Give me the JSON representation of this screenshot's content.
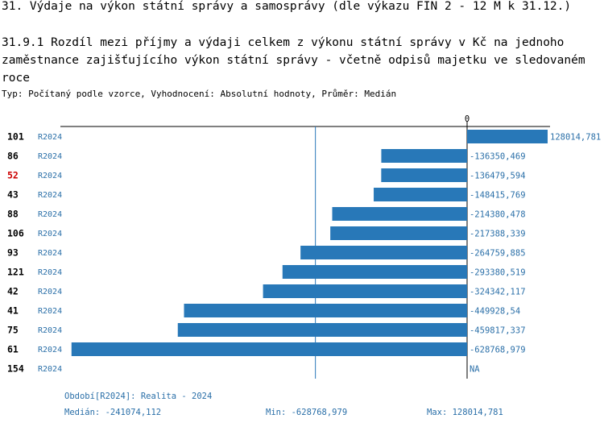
{
  "title": "31. Výdaje na výkon státní správy a samosprávy (dle výkazu FIN 2 - 12 M k 31.12.)",
  "subtitle": "31.9.1 Rozdíl mezi příjmy a výdaji celkem z výkonu státní správy v Kč na jednoho zaměstnance zajišťujícího výkon státní správy - včetně odpisů majetku ve sledovaném roce",
  "type_line": "Typ: Počítaný podle vzorce, Vyhodnocení: Absolutní hodnoty, Průměr: Medián",
  "colors": {
    "bar": "#2878b8",
    "label": "#2a6fa8",
    "highlight": "#cc0000",
    "axis": "#000000",
    "median_line": "#2878b8"
  },
  "chart_data": {
    "type": "bar",
    "orientation": "horizontal",
    "zero_label": "0",
    "period": "R2024",
    "xlim": [
      -640000,
      128014.781
    ],
    "median": -241074.112,
    "highlighted_category": "52",
    "categories": [
      "101",
      "86",
      "52",
      "43",
      "88",
      "106",
      "93",
      "121",
      "42",
      "41",
      "75",
      "61",
      "154"
    ],
    "values": [
      128014.781,
      -136350.469,
      -136479.594,
      -148415.769,
      -214380.478,
      -217388.339,
      -264759.885,
      -293380.519,
      -324342.117,
      -449928.54,
      -459817.337,
      -628768.979,
      null
    ],
    "value_labels": [
      "128014,781",
      "-136350,469",
      "-136479,594",
      "-148415,769",
      "-214380,478",
      "-217388,339",
      "-264759,885",
      "-293380,519",
      "-324342,117",
      "-449928,54",
      "-459817,337",
      "-628768,979",
      "NA"
    ]
  },
  "footer": {
    "period_label": "Období[R2024]: Realita - 2024",
    "median_label": "Medián: -241074,112",
    "min_label": "Min: -628768,979",
    "max_label": "Max: 128014,781"
  }
}
